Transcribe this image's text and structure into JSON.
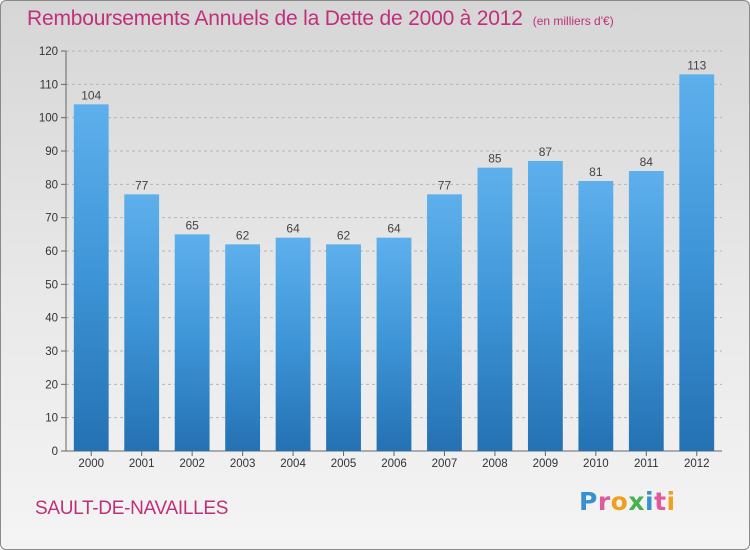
{
  "title": "Remboursements Annuels de la Dette de 2000 à 2012",
  "subtitle": "(en milliers d'€)",
  "commune": "SAULT-DE-NAVAILLES",
  "logo": {
    "letters": [
      "P",
      "r",
      "o",
      "x",
      "i",
      "t",
      "i"
    ],
    "colors": [
      "#3a8fd0",
      "#e05a9a",
      "#f0a020",
      "#4caf50",
      "#3a8fd0",
      "#e05a9a",
      "#f0a020"
    ]
  },
  "colors": {
    "accent": "#c0307a",
    "bar": "#3d94d6",
    "bar_light": "#5eb0ec",
    "bar_dark": "#2471b3"
  },
  "chart_data": {
    "type": "bar",
    "title": "Remboursements Annuels de la Dette de 2000 à 2012",
    "subtitle": "(en milliers d'€)",
    "xlabel": "",
    "ylabel": "",
    "categories": [
      "2000",
      "2001",
      "2002",
      "2003",
      "2004",
      "2005",
      "2006",
      "2007",
      "2008",
      "2009",
      "2010",
      "2011",
      "2012"
    ],
    "values": [
      104,
      77,
      65,
      62,
      64,
      62,
      64,
      77,
      85,
      87,
      81,
      84,
      113
    ],
    "ylim": [
      0,
      120
    ],
    "yticks": [
      0,
      10,
      20,
      30,
      40,
      50,
      60,
      70,
      80,
      90,
      100,
      110,
      120
    ],
    "grid": true,
    "legend": "none"
  }
}
